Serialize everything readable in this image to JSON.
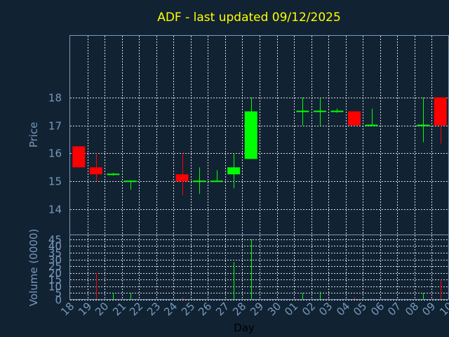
{
  "chart_data": {
    "type": "candlestick",
    "title": "ADF - last updated 09/12/2025",
    "ylabel": "Price",
    "volume_label": "Volume (0000)",
    "xlabel": "Day",
    "price_ylim": [
      13.1,
      20.2
    ],
    "price_ticks": [
      14,
      15,
      16,
      17,
      18
    ],
    "volume_ylim": [
      0,
      48
    ],
    "volume_ticks": [
      0,
      5,
      10,
      15,
      20,
      25,
      30,
      35,
      40,
      45
    ],
    "x_ticks": [
      "18",
      "19",
      "20",
      "21",
      "22",
      "23",
      "24",
      "25",
      "26",
      "27",
      "28",
      "29",
      "30",
      "01",
      "02",
      "03",
      "04",
      "05",
      "06",
      "07",
      "08",
      "09",
      "10"
    ],
    "grid": true,
    "colors": {
      "up": "#00ff00",
      "down": "#ff0000",
      "background": "#112233",
      "title": "#ffff00",
      "axis": "#7799bb"
    },
    "candles": [
      {
        "day": "18",
        "open": 16.25,
        "close": 15.5,
        "high": 16.25,
        "low": 15.5,
        "volume": 0
      },
      {
        "day": "19",
        "open": 15.5,
        "close": 15.25,
        "high": 16.0,
        "low": 15.0,
        "volume": 20
      },
      {
        "day": "20",
        "open": 15.25,
        "close": 15.25,
        "high": 15.3,
        "low": 15.2,
        "volume": 5
      },
      {
        "day": "21",
        "open": 15.0,
        "close": 15.0,
        "high": 15.0,
        "low": 14.7,
        "volume": 5
      },
      {
        "day": "24",
        "open": 15.25,
        "close": 15.0,
        "high": 16.0,
        "low": 14.5,
        "volume": 2
      },
      {
        "day": "25",
        "open": 15.0,
        "close": 15.0,
        "high": 15.5,
        "low": 14.55,
        "volume": 0
      },
      {
        "day": "26",
        "open": 15.0,
        "close": 15.0,
        "high": 15.4,
        "low": 15.0,
        "volume": 0
      },
      {
        "day": "27",
        "open": 15.25,
        "close": 15.5,
        "high": 16.0,
        "low": 14.75,
        "volume": 28
      },
      {
        "day": "28",
        "open": 15.8,
        "close": 17.5,
        "high": 18.0,
        "low": 15.8,
        "volume": 45
      },
      {
        "day": "01",
        "open": 17.5,
        "close": 17.5,
        "high": 18.0,
        "low": 17.0,
        "volume": 5
      },
      {
        "day": "02",
        "open": 17.5,
        "close": 17.5,
        "high": 18.0,
        "low": 17.0,
        "volume": 6
      },
      {
        "day": "03",
        "open": 17.5,
        "close": 17.5,
        "high": 17.6,
        "low": 17.45,
        "volume": 0
      },
      {
        "day": "04",
        "open": 17.5,
        "close": 17.0,
        "high": 17.5,
        "low": 17.0,
        "volume": 2
      },
      {
        "day": "05",
        "open": 17.0,
        "close": 17.0,
        "high": 17.6,
        "low": 17.0,
        "volume": 0
      },
      {
        "day": "08",
        "open": 17.0,
        "close": 17.0,
        "high": 18.0,
        "low": 16.4,
        "volume": 5
      },
      {
        "day": "09",
        "open": 18.0,
        "close": 17.0,
        "high": 18.0,
        "low": 16.35,
        "volume": 15
      }
    ]
  }
}
